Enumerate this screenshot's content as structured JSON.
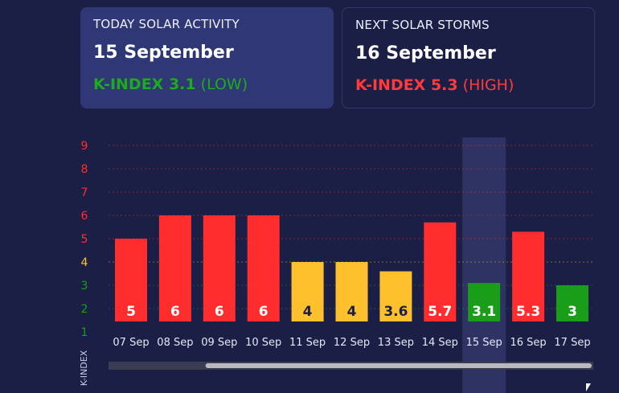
{
  "today": {
    "title": "TODAY SOLAR ACTIVITY",
    "date": "15 September",
    "k_label": "K-INDEX 3.1",
    "k_level": "(LOW)"
  },
  "next": {
    "title": "NEXT SOLAR STORMS",
    "date": "16 September",
    "k_label": "K-INDEX 5.3",
    "k_level": "(HIGH)"
  },
  "colors": {
    "high": "#ff2d2d",
    "medium": "#ffc02e",
    "low": "#1a9e1a",
    "highlight": "#2f3363"
  },
  "chart_data": {
    "type": "bar",
    "ylabel": "K-INDEX",
    "ylim": [
      1,
      9
    ],
    "yticks": [
      1,
      2,
      3,
      4,
      5,
      6,
      7,
      8,
      9
    ],
    "ytick_colors": [
      "#1a9e1a",
      "#1a9e1a",
      "#1a9e1a",
      "#ffc02e",
      "#ff2d2d",
      "#ff2d2d",
      "#ff2d2d",
      "#ff2d2d",
      "#ff2d2d"
    ],
    "categories": [
      "07 Sep",
      "08 Sep",
      "09 Sep",
      "10 Sep",
      "11 Sep",
      "12 Sep",
      "13 Sep",
      "14 Sep",
      "15 Sep",
      "16 Sep",
      "17 Sep"
    ],
    "values": [
      5,
      6,
      6,
      6,
      4,
      4,
      3.6,
      5.7,
      3.1,
      5.3,
      3
    ],
    "labels": [
      "5",
      "6",
      "6",
      "6",
      "4",
      "4",
      "3.6",
      "5.7",
      "3.1",
      "5.3",
      "3"
    ],
    "levels": [
      "high",
      "high",
      "high",
      "high",
      "medium",
      "medium",
      "medium",
      "high",
      "low",
      "high",
      "low"
    ],
    "highlight_index": 8,
    "grid": true,
    "scroll_position": 0.2
  }
}
